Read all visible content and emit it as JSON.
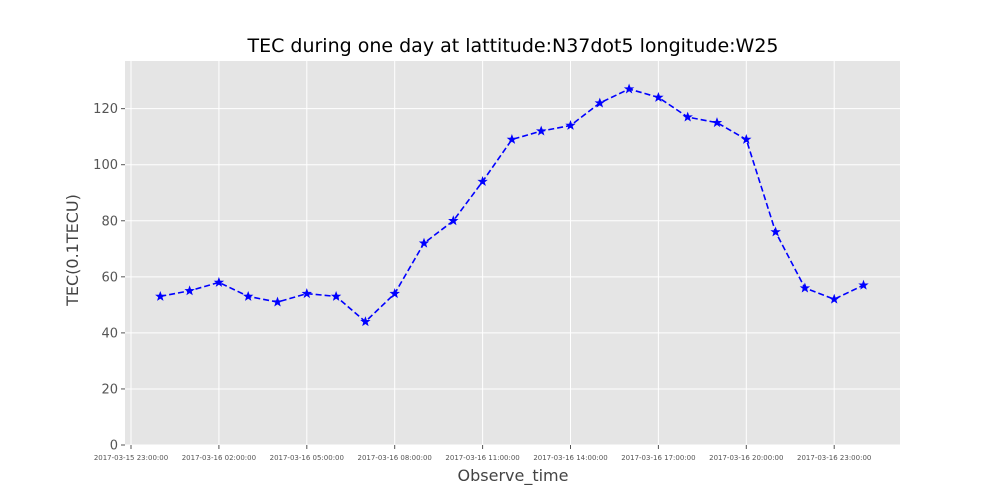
{
  "chart_data": {
    "type": "line",
    "title": "TEC during one day at lattitude:N37dot5 longitude:W25",
    "xlabel": "Observe_time",
    "ylabel": "TEC(0.1TECU)",
    "ylim": [
      0,
      137
    ],
    "yticks": [
      0,
      20,
      40,
      60,
      80,
      100,
      120
    ],
    "xticks": [
      "2017-03-15 23:00:00",
      "2017-03-16 02:00:00",
      "2017-03-16 05:00:00",
      "2017-03-16 08:00:00",
      "2017-03-16 11:00:00",
      "2017-03-16 14:00:00",
      "2017-03-16 17:00:00",
      "2017-03-16 20:00:00",
      "2017-03-16 23:00:00"
    ],
    "grid": true,
    "background": "#e5e5e5",
    "line_color": "#0000ff",
    "line_style": "dashed",
    "marker": "star",
    "series": [
      {
        "x": [
          "2017-03-16 00:00:00",
          "2017-03-16 01:00:00",
          "2017-03-16 02:00:00",
          "2017-03-16 03:00:00",
          "2017-03-16 04:00:00",
          "2017-03-16 05:00:00",
          "2017-03-16 06:00:00",
          "2017-03-16 07:00:00",
          "2017-03-16 08:00:00",
          "2017-03-16 09:00:00",
          "2017-03-16 10:00:00",
          "2017-03-16 11:00:00",
          "2017-03-16 12:00:00",
          "2017-03-16 13:00:00",
          "2017-03-16 14:00:00",
          "2017-03-16 15:00:00",
          "2017-03-16 16:00:00",
          "2017-03-16 17:00:00",
          "2017-03-16 18:00:00",
          "2017-03-16 19:00:00",
          "2017-03-16 20:00:00",
          "2017-03-16 21:00:00",
          "2017-03-16 22:00:00",
          "2017-03-16 23:00:00",
          "2017-03-17 00:00:00"
        ],
        "values": [
          53,
          55,
          58,
          53,
          51,
          54,
          53,
          44,
          54,
          72,
          80,
          94,
          109,
          112,
          114,
          122,
          127,
          124,
          117,
          115,
          109,
          76,
          56,
          52,
          57
        ]
      }
    ]
  }
}
